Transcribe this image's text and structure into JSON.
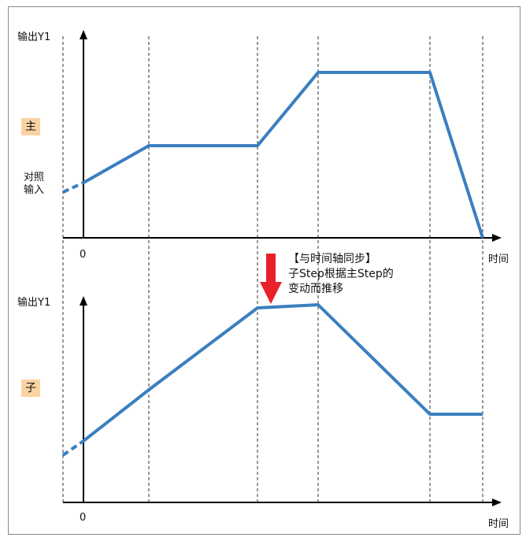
{
  "colors": {
    "line": "#3a7fbf",
    "axis": "#000000",
    "arrow": "#e8202a",
    "tag_bg": "#fbd3a3",
    "gridline": "#333333"
  },
  "main_chart": {
    "y_label": "输出Y1",
    "role_tag": "主",
    "ref_label_line1": "对照",
    "ref_label_line2": "输入",
    "origin_label": "0",
    "x_label": "时间"
  },
  "sub_chart": {
    "y_label": "输出Y1",
    "role_tag": "子",
    "origin_label": "0",
    "x_label": "时间"
  },
  "sync_note": {
    "line1": "【与时间轴同步】",
    "line2": "子Step根据主Step的",
    "line3": "变动而推移"
  },
  "icons": {
    "sync_arrow": "arrow-down-icon"
  }
}
